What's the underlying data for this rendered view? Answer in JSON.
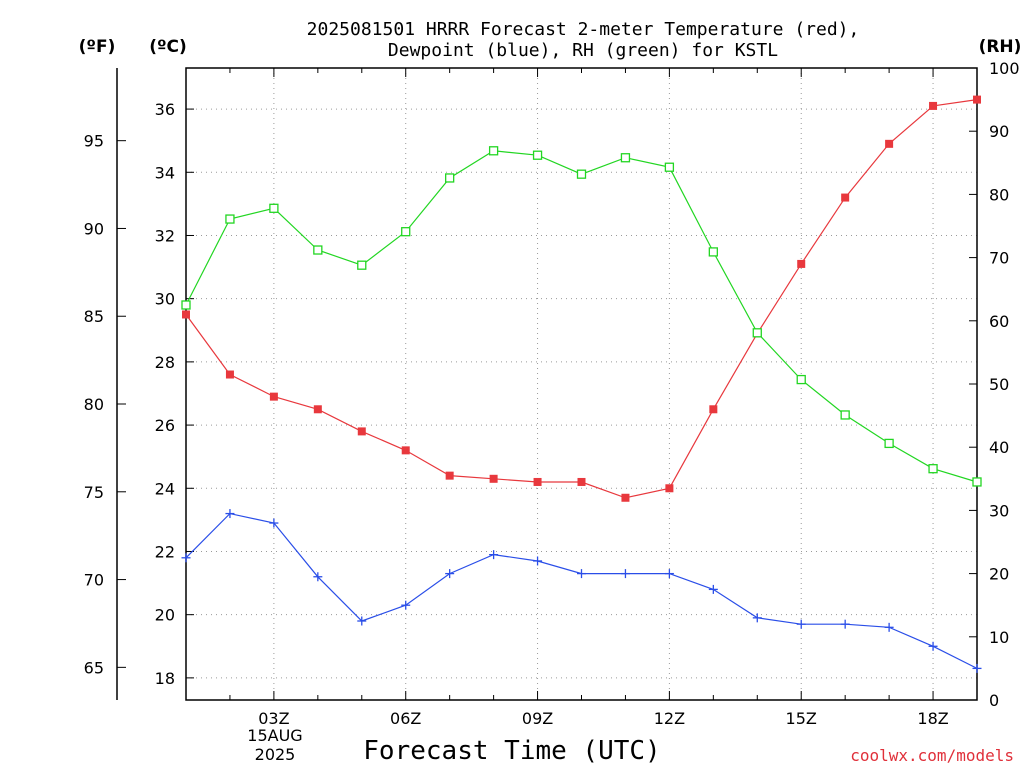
{
  "chart_data": {
    "type": "line",
    "title_lines": [
      "2025081501 HRRR Forecast 2-meter Temperature (red),",
      "Dewpoint (blue), RH (green) for KSTL"
    ],
    "xlabel": "Forecast Time (UTC)",
    "date_label_lines": [
      "15AUG",
      "2025"
    ],
    "credit": "coolwx.com/models",
    "unit_labels": {
      "fahrenheit": "(ºF)",
      "celsius": "(ºC)",
      "rh": "(RH)"
    },
    "x_hours": [
      1,
      2,
      3,
      4,
      5,
      6,
      7,
      8,
      9,
      10,
      11,
      12,
      13,
      14,
      15,
      16,
      17,
      18,
      19
    ],
    "x_ticks": [
      {
        "hour": 3,
        "label": "03Z"
      },
      {
        "hour": 6,
        "label": "06Z"
      },
      {
        "hour": 9,
        "label": "09Z"
      },
      {
        "hour": 12,
        "label": "12Z"
      },
      {
        "hour": 15,
        "label": "15Z"
      },
      {
        "hour": 18,
        "label": "18Z"
      }
    ],
    "xlim": [
      1,
      19
    ],
    "celsius_axis": {
      "ylim": [
        17.3,
        37.3
      ],
      "ticks": [
        18,
        20,
        22,
        24,
        26,
        28,
        30,
        32,
        34,
        36
      ]
    },
    "fahrenheit_axis": {
      "ticks": [
        65,
        70,
        75,
        80,
        85,
        90,
        95
      ]
    },
    "rh_axis": {
      "ylim": [
        0,
        100
      ],
      "ticks": [
        0,
        10,
        20,
        30,
        40,
        50,
        60,
        70,
        80,
        90,
        100
      ]
    },
    "grid": true,
    "series": [
      {
        "key": "temperature",
        "axis": "celsius",
        "color": "#e8383d",
        "marker": "filled-square",
        "values": [
          29.5,
          27.6,
          26.9,
          26.5,
          25.8,
          25.2,
          24.4,
          24.3,
          24.2,
          24.2,
          23.7,
          24.0,
          26.5,
          28.9,
          31.1,
          33.2,
          34.9,
          36.1,
          36.3
        ]
      },
      {
        "key": "dewpoint",
        "axis": "celsius",
        "color": "#2a4ee8",
        "marker": "plus",
        "values": [
          21.8,
          23.2,
          22.9,
          21.2,
          19.8,
          20.3,
          21.3,
          21.9,
          21.7,
          21.3,
          21.3,
          21.3,
          20.8,
          19.9,
          19.7,
          19.7,
          19.6,
          19.0,
          18.3
        ]
      },
      {
        "key": "rh",
        "axis": "rh",
        "color": "#22d622",
        "marker": "open-square",
        "values": [
          62.5,
          76.1,
          77.8,
          71.2,
          68.8,
          74.1,
          82.6,
          86.9,
          86.2,
          83.2,
          85.8,
          84.3,
          70.9,
          58.1,
          50.7,
          45.1,
          40.6,
          36.6,
          34.5
        ]
      }
    ]
  }
}
